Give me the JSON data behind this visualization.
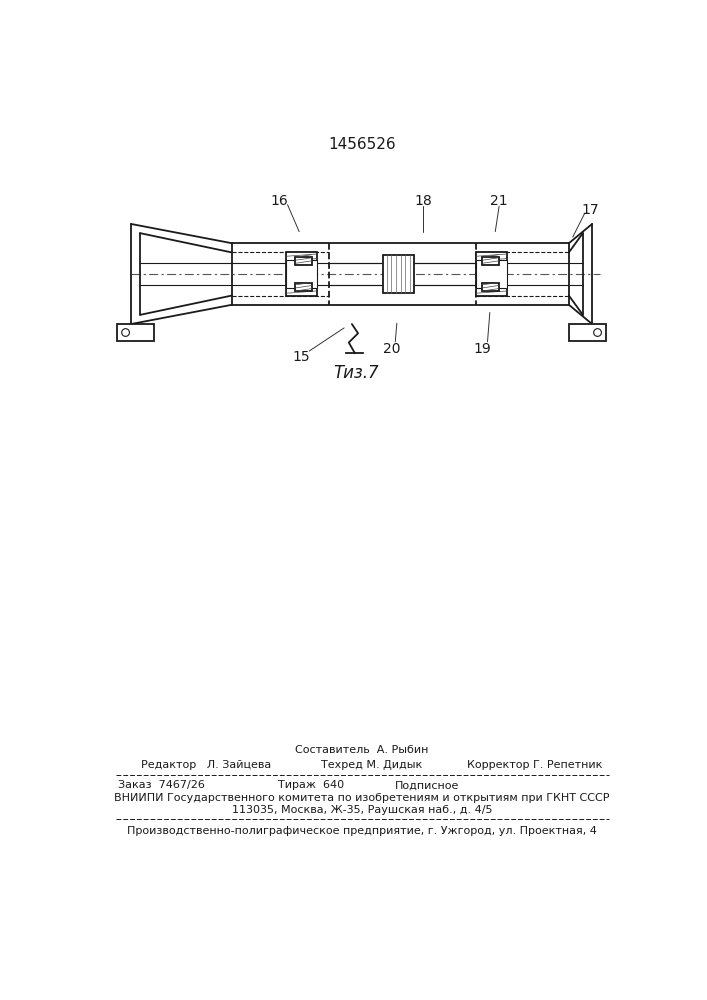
{
  "patent_number": "1456526",
  "fig_caption": "Τиз.7",
  "footer_line1_center": "Составитель  А. Рыбин",
  "footer_editor": "Редактор   Л. Зайцева",
  "footer_techred": "Техред М. Дидык",
  "footer_corrector": "Корректор Г. Репетник",
  "footer_order": "Заказ  7467/26",
  "footer_tirazh": "Тираж  640",
  "footer_podpisnoe": "Подписное",
  "footer_vniip1": "ВНИИПИ Государственного комитета по изобретениям и открытиям при ГКНТ СССР",
  "footer_vniip2": "113035, Москва, Ж-35, Раушская наб., д. 4/5",
  "footer_prod": "Производственно-полиграфическое предприятие, г. Ужгород, ул. Проектная, 4",
  "bg_color": "#ffffff",
  "line_color": "#1a1a1a"
}
